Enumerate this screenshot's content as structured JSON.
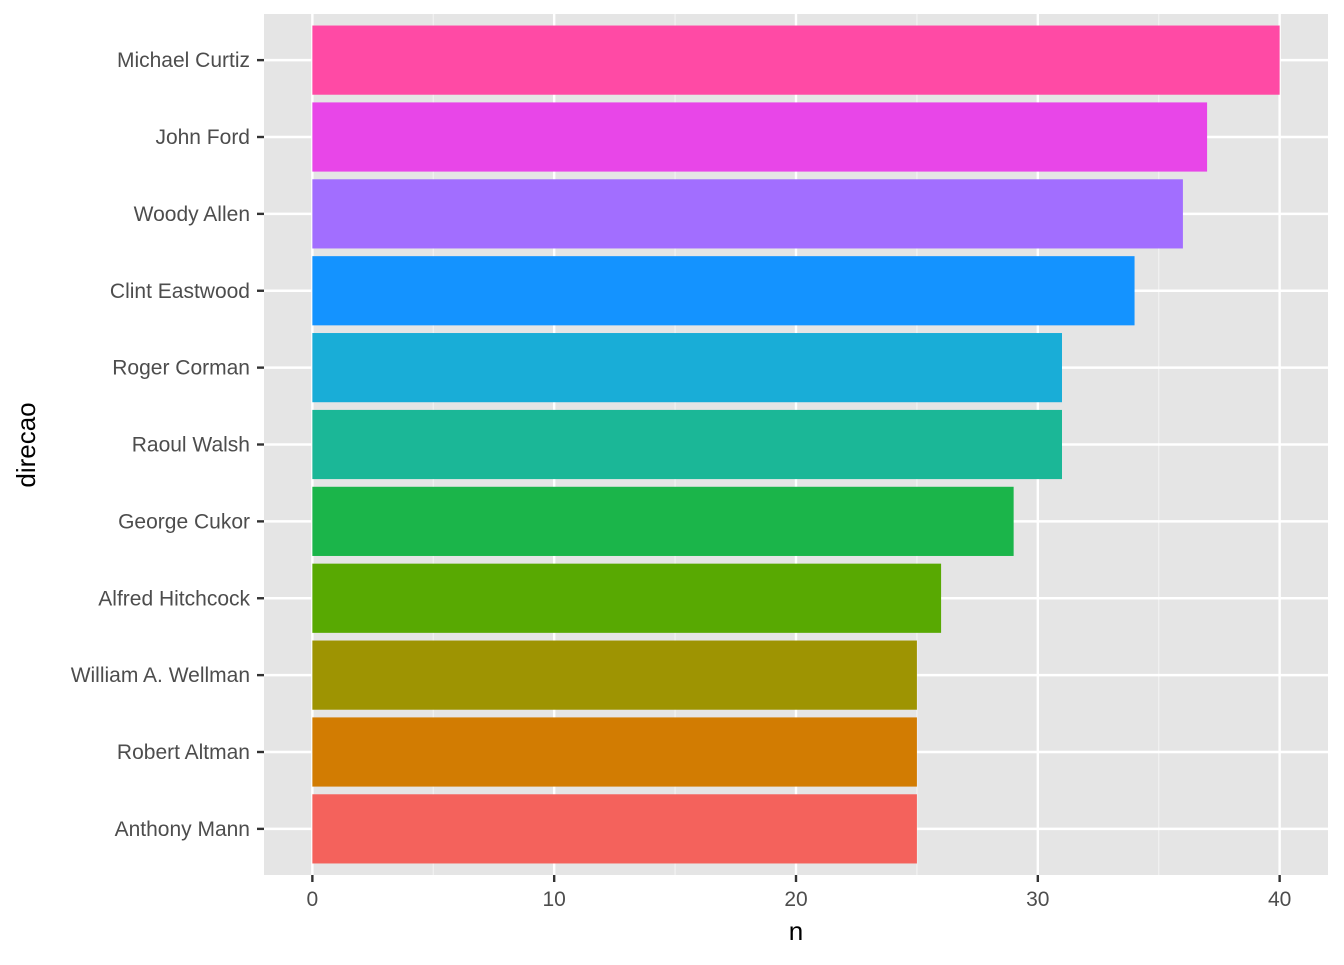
{
  "chart_data": {
    "type": "bar",
    "orientation": "horizontal",
    "xlabel": "n",
    "ylabel": "direcao",
    "xlim": [
      -2,
      42
    ],
    "x_ticks": [
      0,
      10,
      20,
      30,
      40
    ],
    "categories": [
      "Michael Curtiz",
      "John Ford",
      "Woody Allen",
      "Clint Eastwood",
      "Roger Corman",
      "Raoul Walsh",
      "George Cukor",
      "Alfred Hitchcock",
      "William A. Wellman",
      "Robert Altman",
      "Anthony Mann"
    ],
    "values": [
      40,
      37,
      36,
      34,
      31,
      31,
      29,
      26,
      25,
      25,
      25
    ],
    "colors": [
      "#FF4AA5",
      "#E846E8",
      "#A26EFF",
      "#1493FF",
      "#19ADD7",
      "#1BB797",
      "#1BB54A",
      "#58A902",
      "#9E9402",
      "#D27C02",
      "#F4625C"
    ],
    "panel_background": "#E5E5E5",
    "grid": true,
    "legend": "none"
  }
}
